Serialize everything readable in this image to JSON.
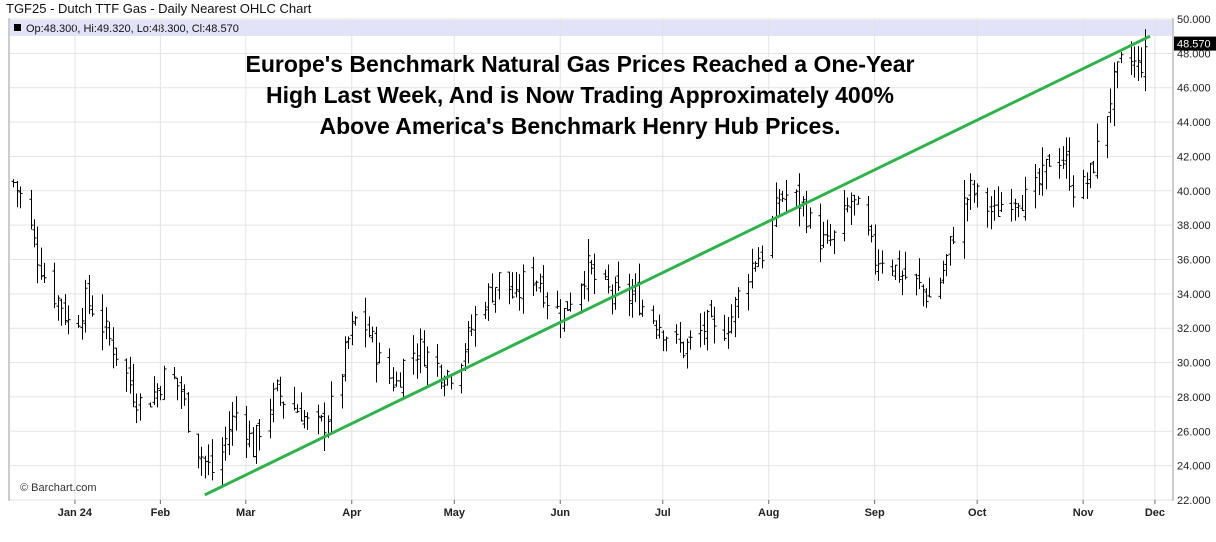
{
  "header": {
    "title": "TGF25 - Dutch TTF Gas - Daily Nearest OHLC Chart",
    "info": "Op:48.300, Hi:49.320, Lo:48.300, Cl:48.570"
  },
  "annotation": {
    "lines": [
      "Europe's Benchmark Natural Gas Prices Reached a One-Year",
      "High Last Week, And is Now Trading Approximately 400%",
      "Above America's Benchmark Henry Hub Prices."
    ]
  },
  "credit": "© Barchart.com",
  "colors": {
    "bars": "#000000",
    "trendline": "#2db34a",
    "info_band": "#e2e2f8",
    "last_price_bg": "#000000",
    "grid": "#e3e3e3"
  },
  "chart_data": {
    "type": "ohlc",
    "ylim": [
      22,
      50
    ],
    "y_ticks": [
      "22.000",
      "24.000",
      "26.000",
      "28.000",
      "30.000",
      "32.000",
      "34.000",
      "36.000",
      "38.000",
      "40.000",
      "42.000",
      "44.000",
      "46.000",
      "48.000",
      "50.000"
    ],
    "x_ticks": [
      "Jan 24",
      "Feb",
      "Mar",
      "Apr",
      "May",
      "Jun",
      "Jul",
      "Aug",
      "Sep",
      "Oct",
      "Nov",
      "Dec"
    ],
    "last_price": "48.570",
    "trendline": {
      "from": {
        "date": "Feb 27",
        "value": 22.3
      },
      "to": {
        "date": "Nov 29",
        "value": 49.0
      }
    },
    "grid": true,
    "close_series": [
      {
        "date": "Jan 2",
        "value": 40.5
      },
      {
        "date": "Jan 5",
        "value": 39.3
      },
      {
        "date": "Jan 9",
        "value": 36.2
      },
      {
        "date": "Jan 12",
        "value": 34.5
      },
      {
        "date": "Jan 16",
        "value": 33.4
      },
      {
        "date": "Jan 19",
        "value": 31.8
      },
      {
        "date": "Jan 23",
        "value": 33.6
      },
      {
        "date": "Jan 26",
        "value": 33.0
      },
      {
        "date": "Jan 30",
        "value": 31.3
      },
      {
        "date": "Feb 2",
        "value": 30.2
      },
      {
        "date": "Feb 6",
        "value": 28.3
      },
      {
        "date": "Feb 9",
        "value": 27.4
      },
      {
        "date": "Feb 13",
        "value": 28.5
      },
      {
        "date": "Feb 16",
        "value": 29.5
      },
      {
        "date": "Feb 20",
        "value": 28.4
      },
      {
        "date": "Feb 23",
        "value": 25.8
      },
      {
        "date": "Feb 27",
        "value": 24.2
      },
      {
        "date": "Mar 1",
        "value": 23.4
      },
      {
        "date": "Mar 5",
        "value": 26.2
      },
      {
        "date": "Mar 8",
        "value": 27.5
      },
      {
        "date": "Mar 12",
        "value": 25.0
      },
      {
        "date": "Mar 15",
        "value": 26.8
      },
      {
        "date": "Mar 19",
        "value": 28.3
      },
      {
        "date": "Mar 22",
        "value": 27.6
      },
      {
        "date": "Mar 26",
        "value": 27.2
      },
      {
        "date": "Mar 29",
        "value": 26.0
      },
      {
        "date": "Apr 2",
        "value": 26.5
      },
      {
        "date": "Apr 5",
        "value": 27.8
      },
      {
        "date": "Apr 9",
        "value": 31.3
      },
      {
        "date": "Apr 12",
        "value": 33.0
      },
      {
        "date": "Apr 16",
        "value": 31.2
      },
      {
        "date": "Apr 19",
        "value": 29.5
      },
      {
        "date": "Apr 23",
        "value": 28.8
      },
      {
        "date": "Apr 26",
        "value": 30.5
      },
      {
        "date": "Apr 30",
        "value": 30.8
      },
      {
        "date": "May 3",
        "value": 30.2
      },
      {
        "date": "May 7",
        "value": 29.4
      },
      {
        "date": "May 10",
        "value": 29.5
      },
      {
        "date": "May 14",
        "value": 31.4
      },
      {
        "date": "May 17",
        "value": 33.2
      },
      {
        "date": "May 21",
        "value": 34.2
      },
      {
        "date": "May 24",
        "value": 35.2
      },
      {
        "date": "May 28",
        "value": 33.5
      },
      {
        "date": "May 31",
        "value": 35.3
      },
      {
        "date": "Jun 4",
        "value": 34.8
      },
      {
        "date": "Jun 7",
        "value": 33.2
      },
      {
        "date": "Jun 11",
        "value": 32.9
      },
      {
        "date": "Jun 14",
        "value": 34.3
      },
      {
        "date": "Jun 18",
        "value": 35.5
      },
      {
        "date": "Jun 21",
        "value": 34.5
      },
      {
        "date": "Jun 25",
        "value": 34.0
      },
      {
        "date": "Jun 28",
        "value": 33.8
      },
      {
        "date": "Jul 2",
        "value": 33.9
      },
      {
        "date": "Jul 5",
        "value": 33.0
      },
      {
        "date": "Jul 9",
        "value": 32.3
      },
      {
        "date": "Jul 12",
        "value": 31.4
      },
      {
        "date": "Jul 16",
        "value": 30.8
      },
      {
        "date": "Jul 19",
        "value": 31.3
      },
      {
        "date": "Jul 23",
        "value": 32.2
      },
      {
        "date": "Jul 26",
        "value": 31.4
      },
      {
        "date": "Jul 30",
        "value": 32.7
      },
      {
        "date": "Aug 2",
        "value": 34.5
      },
      {
        "date": "Aug 6",
        "value": 36.1
      },
      {
        "date": "Aug 9",
        "value": 36.5
      },
      {
        "date": "Aug 13",
        "value": 39.6
      },
      {
        "date": "Aug 16",
        "value": 39.8
      },
      {
        "date": "Aug 20",
        "value": 39.2
      },
      {
        "date": "Aug 23",
        "value": 37.6
      },
      {
        "date": "Aug 27",
        "value": 36.8
      },
      {
        "date": "Aug 30",
        "value": 37.5
      },
      {
        "date": "Sep 3",
        "value": 39.4
      },
      {
        "date": "Sep 6",
        "value": 38.5
      },
      {
        "date": "Sep 10",
        "value": 36.0
      },
      {
        "date": "Sep 13",
        "value": 36.3
      },
      {
        "date": "Sep 17",
        "value": 35.2
      },
      {
        "date": "Sep 20",
        "value": 34.9
      },
      {
        "date": "Sep 24",
        "value": 34.2
      },
      {
        "date": "Sep 27",
        "value": 33.6
      },
      {
        "date": "Oct 1",
        "value": 36.0
      },
      {
        "date": "Oct 4",
        "value": 38.4
      },
      {
        "date": "Oct 8",
        "value": 40.0
      },
      {
        "date": "Oct 11",
        "value": 39.5
      },
      {
        "date": "Oct 15",
        "value": 38.6
      },
      {
        "date": "Oct 18",
        "value": 39.6
      },
      {
        "date": "Oct 22",
        "value": 39.8
      },
      {
        "date": "Oct 25",
        "value": 39.3
      },
      {
        "date": "Oct 29",
        "value": 40.7
      },
      {
        "date": "Nov 1",
        "value": 42.4
      },
      {
        "date": "Nov 5",
        "value": 41.6
      },
      {
        "date": "Nov 8",
        "value": 39.5
      },
      {
        "date": "Nov 12",
        "value": 40.9
      },
      {
        "date": "Nov 15",
        "value": 43.1
      },
      {
        "date": "Nov 19",
        "value": 46.2
      },
      {
        "date": "Nov 22",
        "value": 47.8
      },
      {
        "date": "Nov 26",
        "value": 47.2
      },
      {
        "date": "Nov 29",
        "value": 48.0
      }
    ]
  }
}
